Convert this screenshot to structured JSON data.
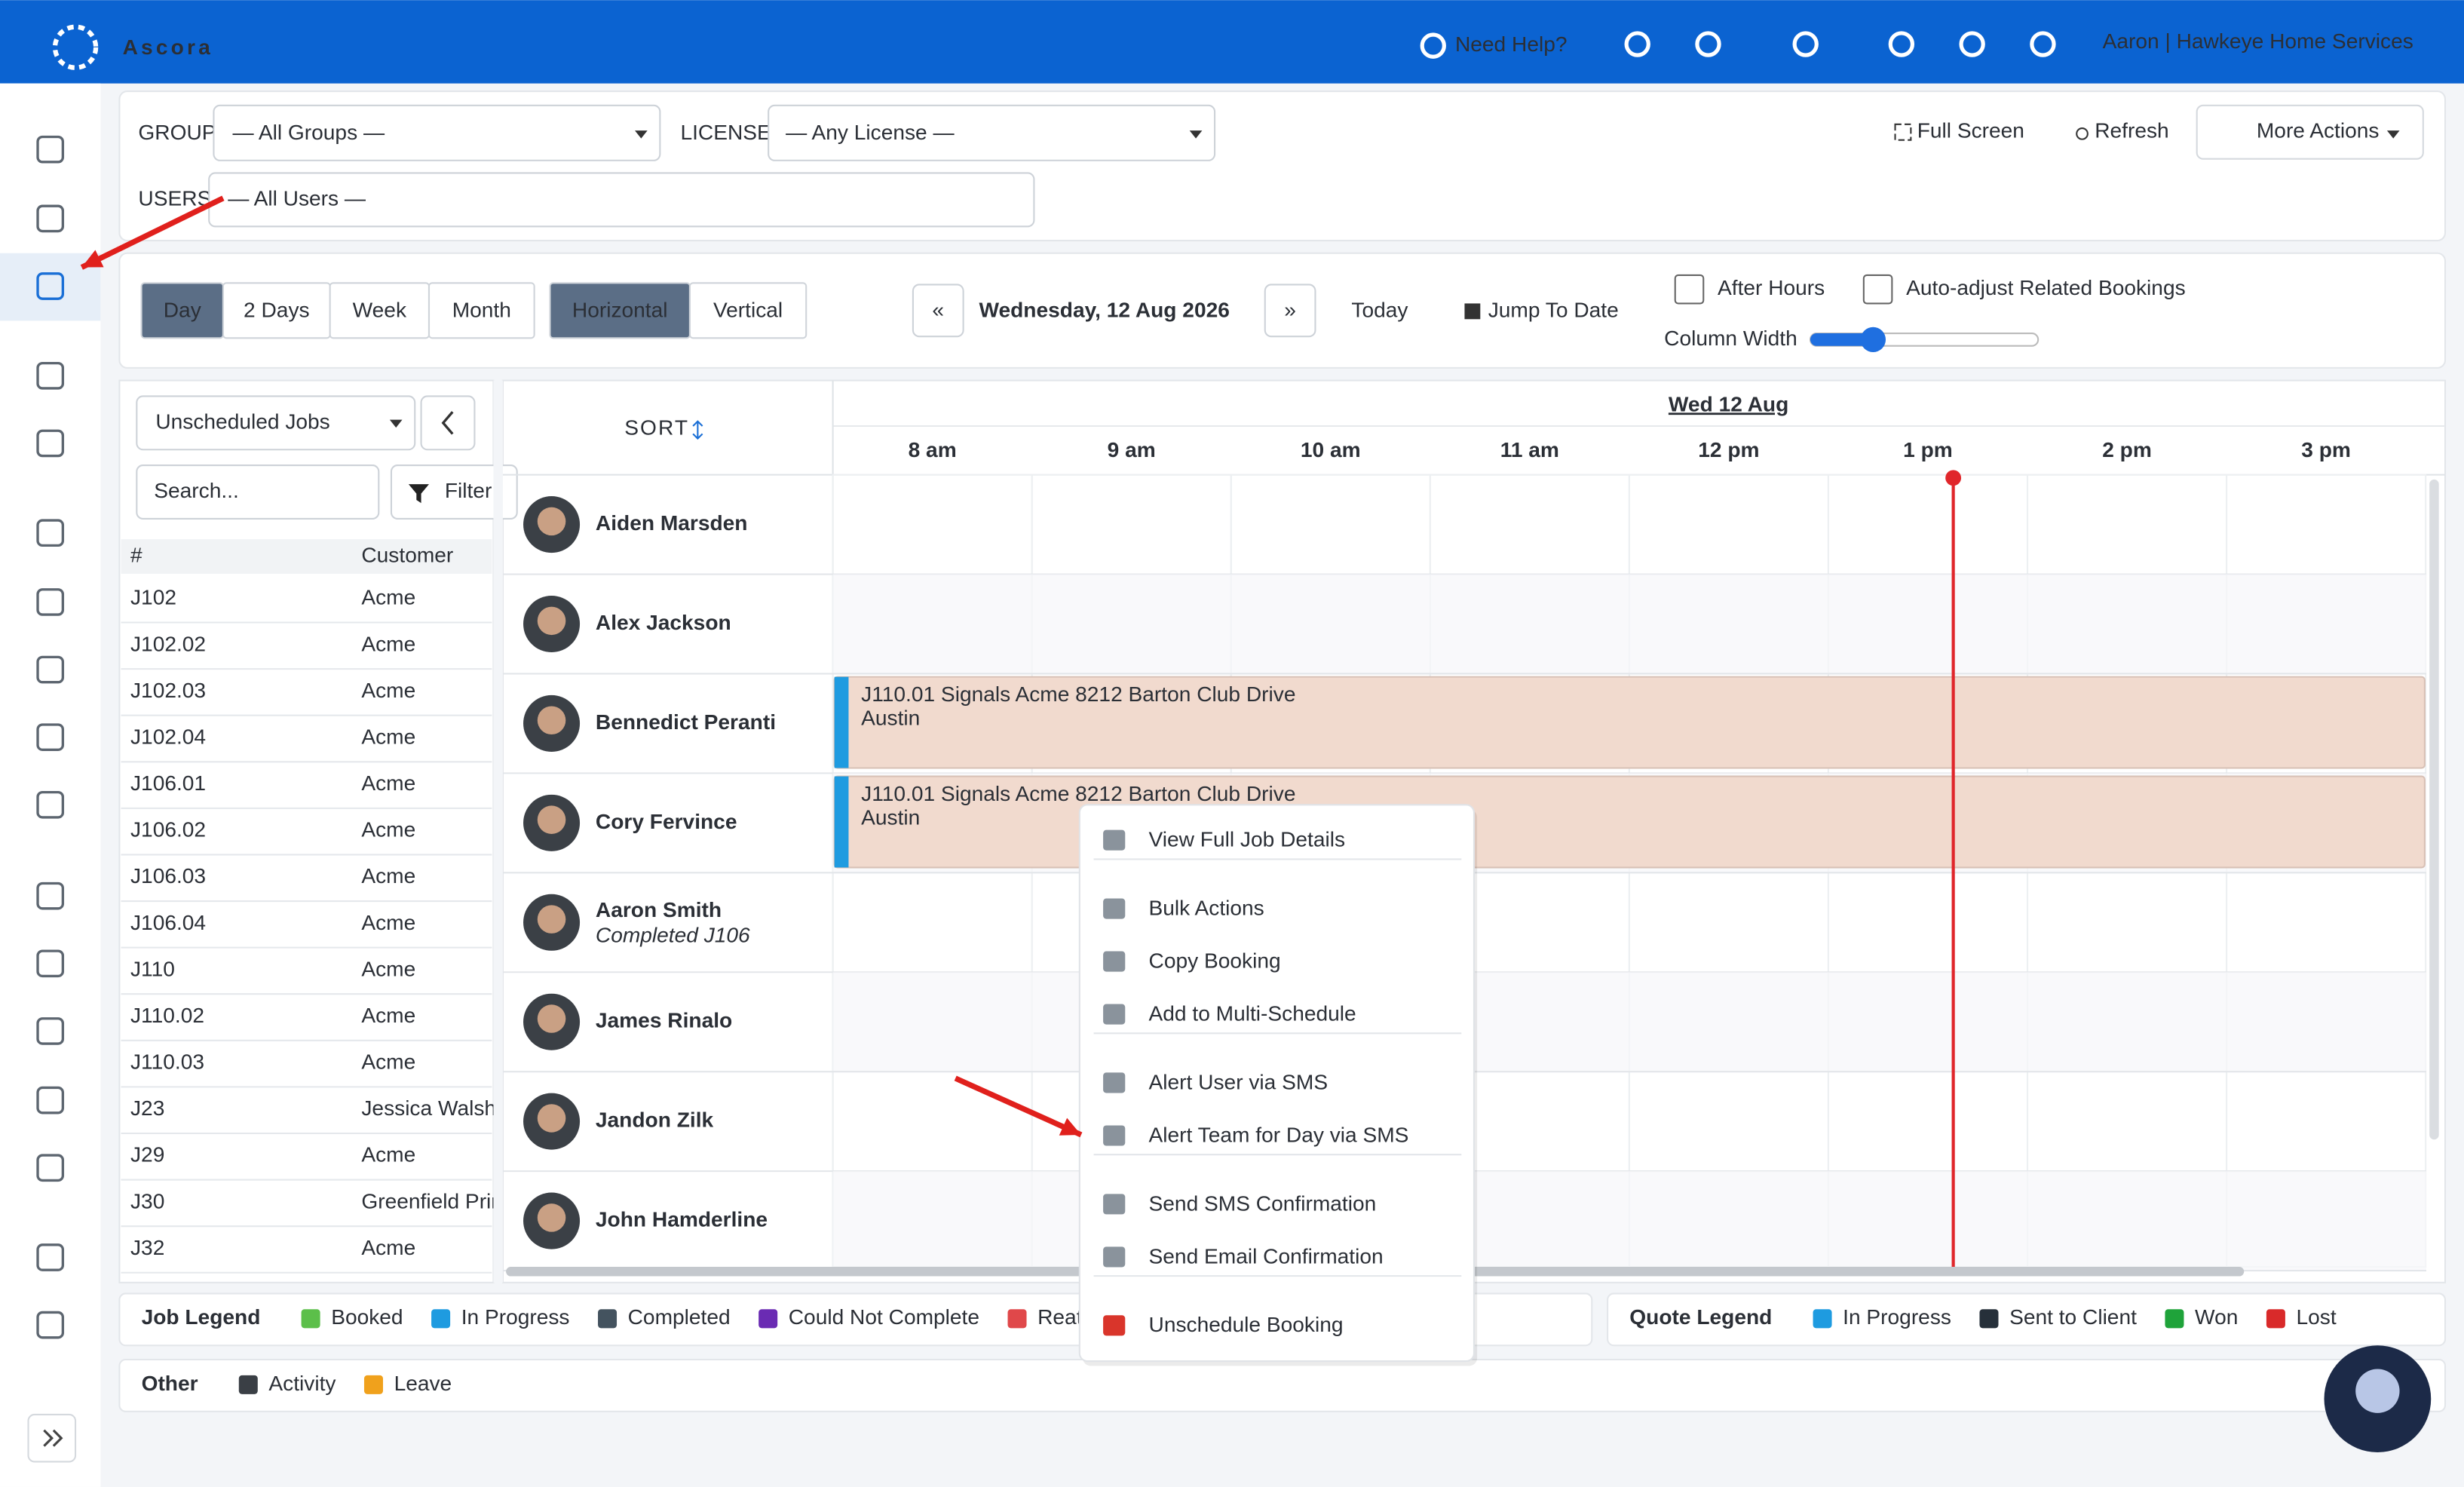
{
  "header": {
    "brand": "Ascora",
    "help": "Need Help?",
    "user": "Aaron | Hawkeye Home Services"
  },
  "filters": {
    "group_label": "GROUP",
    "group_value": "— All Groups —",
    "license_label": "LICENSE",
    "license_value": "— Any License —",
    "users_label": "USERS",
    "users_value": "— All Users —",
    "full_screen": "Full Screen",
    "refresh": "Refresh",
    "more_actions": "More Actions"
  },
  "toolbar": {
    "views": [
      "Day",
      "2 Days",
      "Week",
      "Month"
    ],
    "orientations": [
      "Horizontal",
      "Vertical"
    ],
    "prev": "«",
    "date": "Wednesday, 12 Aug 2026",
    "next": "»",
    "today": "Today",
    "jump": "Jump To Date",
    "after_hours": "After Hours",
    "auto_adjust": "Auto-adjust Related Bookings",
    "column_width": "Column Width"
  },
  "jobs_panel": {
    "dropdown": "Unscheduled Jobs",
    "search_placeholder": "Search...",
    "filter": "Filter",
    "columns": [
      "#",
      "Customer"
    ],
    "rows": [
      [
        "J102",
        "Acme"
      ],
      [
        "J102.02",
        "Acme"
      ],
      [
        "J102.03",
        "Acme"
      ],
      [
        "J102.04",
        "Acme"
      ],
      [
        "J106.01",
        "Acme"
      ],
      [
        "J106.02",
        "Acme"
      ],
      [
        "J106.03",
        "Acme"
      ],
      [
        "J106.04",
        "Acme"
      ],
      [
        "J110",
        "Acme"
      ],
      [
        "J110.02",
        "Acme"
      ],
      [
        "J110.03",
        "Acme"
      ],
      [
        "J23",
        "Jessica Walsh"
      ],
      [
        "J29",
        "Acme"
      ],
      [
        "J30",
        "Greenfield Prir"
      ],
      [
        "J32",
        "Acme"
      ]
    ]
  },
  "schedule": {
    "sort": "SORT",
    "day": "Wed 12 Aug",
    "hours": [
      "8 am",
      "9 am",
      "10 am",
      "11 am",
      "12 pm",
      "1 pm",
      "2 pm",
      "3 pm"
    ],
    "staff": [
      {
        "name": "Aiden Marsden"
      },
      {
        "name": "Alex Jackson"
      },
      {
        "name": "Bennedict Peranti"
      },
      {
        "name": "Cory Fervince"
      },
      {
        "name": "Aaron Smith",
        "note": "Completed J106"
      },
      {
        "name": "James Rinalo"
      },
      {
        "name": "Jandon Zilk"
      },
      {
        "name": "John Hamderline"
      }
    ],
    "bookings": [
      {
        "title": "J110.01 Signals Acme 8212 Barton Club Drive",
        "city": "Austin"
      },
      {
        "title": "J110.01 Signals Acme 8212 Barton Club Drive",
        "city": "Austin"
      }
    ]
  },
  "context_menu": {
    "groups": [
      [
        "View Full Job Details"
      ],
      [
        "Bulk Actions",
        "Copy Booking",
        "Add to Multi-Schedule"
      ],
      [
        "Alert User via SMS",
        "Alert Team for Day via SMS"
      ],
      [
        "Send SMS Confirmation",
        "Send Email Confirmation"
      ],
      [
        "Unschedule Booking"
      ]
    ]
  },
  "legends": {
    "job_title": "Job Legend",
    "job_items": [
      {
        "label": "Booked",
        "color": "#5cbf4a"
      },
      {
        "label": "In Progress",
        "color": "#1e9be0"
      },
      {
        "label": "Completed",
        "color": "#44535f"
      },
      {
        "label": "Could Not Complete",
        "color": "#6a2bb3"
      },
      {
        "label": "Reatte",
        "color": "#e0484a"
      }
    ],
    "quote_title": "Quote Legend",
    "quote_items": [
      {
        "label": "In Progress",
        "color": "#1e9be0"
      },
      {
        "label": "Sent to Client",
        "color": "#26303a"
      },
      {
        "label": "Won",
        "color": "#1fa33a"
      },
      {
        "label": "Lost",
        "color": "#d92a2a"
      }
    ],
    "other_title": "Other",
    "other_items": [
      {
        "label": "Activity",
        "color": "#3a3f45"
      },
      {
        "label": "Leave",
        "color": "#f0a11c"
      }
    ]
  }
}
